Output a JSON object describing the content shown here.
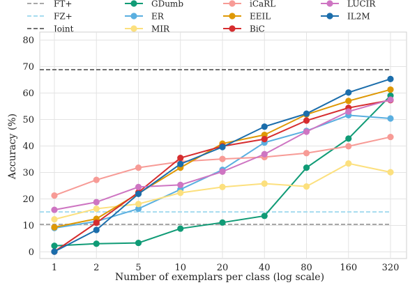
{
  "chart_data": {
    "type": "line",
    "xlabel": "Number of exemplars per class (log scale)",
    "ylabel": "Accuracy (%)",
    "x": [
      "1",
      "2",
      "5",
      "10",
      "20",
      "40",
      "80",
      "160",
      "320"
    ],
    "ylim": [
      0,
      80
    ],
    "yticks": [
      "0",
      "10",
      "20",
      "30",
      "40",
      "50",
      "60",
      "70",
      "80"
    ],
    "grid": true,
    "legend_position": "top",
    "reference_lines": [
      {
        "name": "FT+",
        "value": 10.4,
        "color": "#a8a8a8",
        "dash": "dashed"
      },
      {
        "name": "FZ+",
        "value": 15.1,
        "color": "#a6dcef",
        "dash": "dashed"
      },
      {
        "name": "Joint",
        "value": 68.8,
        "color": "#707070",
        "dash": "dashed"
      }
    ],
    "series": [
      {
        "name": "GDumb",
        "color": "#109b76",
        "values": [
          2.3,
          3.1,
          3.4,
          8.8,
          11.1,
          13.6,
          31.8,
          42.8,
          59.0
        ]
      },
      {
        "name": "ER",
        "color": "#5aafe0",
        "values": [
          9.0,
          11.5,
          16.3,
          23.6,
          31.0,
          41.3,
          45.7,
          51.6,
          50.4
        ]
      },
      {
        "name": "MIR",
        "color": "#fce07e",
        "values": [
          12.3,
          16.3,
          18.1,
          22.3,
          24.5,
          25.8,
          24.7,
          33.4,
          30.1
        ]
      },
      {
        "name": "iCaRL",
        "color": "#f79b96",
        "values": [
          21.3,
          27.2,
          31.8,
          34.1,
          35.1,
          35.8,
          37.3,
          39.9,
          43.4
        ]
      },
      {
        "name": "EEIL",
        "color": "#de9805",
        "values": [
          9.3,
          12.5,
          22.1,
          31.8,
          40.9,
          44.2,
          51.9,
          57.0,
          61.3
        ]
      },
      {
        "name": "BiC",
        "color": "#d62d2f",
        "values": [
          0.1,
          11.0,
          22.5,
          35.5,
          39.9,
          42.6,
          49.6,
          54.4,
          57.3
        ]
      },
      {
        "name": "LUCIR",
        "color": "#ce75c2",
        "values": [
          15.9,
          18.8,
          24.5,
          25.3,
          30.3,
          36.9,
          45.4,
          53.0,
          57.5
        ]
      },
      {
        "name": "IL2M",
        "color": "#1b6dab",
        "values": [
          0.1,
          8.3,
          21.9,
          33.2,
          39.6,
          47.3,
          52.2,
          60.2,
          65.3
        ]
      }
    ]
  }
}
